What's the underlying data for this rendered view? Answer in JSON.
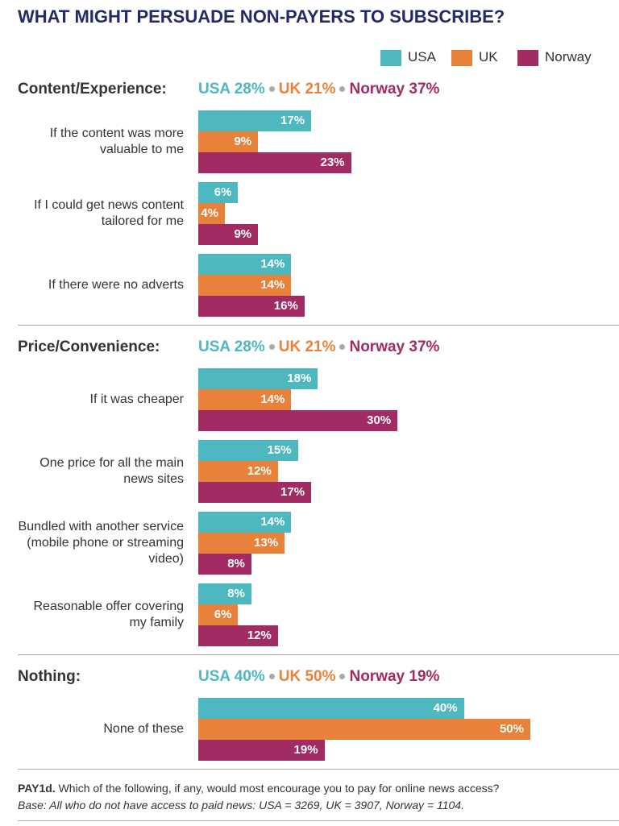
{
  "chart_data": {
    "type": "bar",
    "title": "WHAT MIGHT PERSUADE NON-PAYERS TO SUBSCRIBE?",
    "series": [
      {
        "name": "USA",
        "color": "#4db8c0"
      },
      {
        "name": "UK",
        "color": "#e8823a"
      },
      {
        "name": "Norway",
        "color": "#a22b63"
      }
    ],
    "groups": [
      {
        "title": "Content/Experience:",
        "summary": {
          "values": [
            28,
            21,
            37
          ],
          "value_labels": [
            "USA 28%",
            "UK 21%",
            "Norway 37%"
          ]
        },
        "categories": [
          "If the content was more valuable to me",
          "If I could get news content tailored for me",
          "If there were no adverts"
        ],
        "values": [
          [
            17,
            9,
            23
          ],
          [
            6,
            4,
            9
          ],
          [
            14,
            14,
            16
          ]
        ],
        "value_labels": [
          [
            "17%",
            "9%",
            "23%"
          ],
          [
            "6%",
            "4%",
            "9%"
          ],
          [
            "14%",
            "14%",
            "16%"
          ]
        ]
      },
      {
        "title": "Price/Convenience:",
        "summary": {
          "values": [
            28,
            21,
            37
          ],
          "value_labels": [
            "USA 28%",
            "UK 21%",
            "Norway 37%"
          ]
        },
        "categories": [
          "If it was cheaper",
          "One price for all the main news sites",
          "Bundled with another service (mobile phone or streaming video)",
          "Reasonable offer covering my family"
        ],
        "values": [
          [
            18,
            14,
            30
          ],
          [
            15,
            12,
            17
          ],
          [
            14,
            13,
            8
          ],
          [
            8,
            6,
            12
          ]
        ],
        "value_labels": [
          [
            "18%",
            "14%",
            "30%"
          ],
          [
            "15%",
            "12%",
            "17%"
          ],
          [
            "14%",
            "13%",
            "8%"
          ],
          [
            "8%",
            "6%",
            "12%"
          ]
        ]
      },
      {
        "title": "Nothing:",
        "summary": {
          "values": [
            40,
            50,
            19
          ],
          "value_labels": [
            "USA 40%",
            "UK 50%",
            "Norway 19%"
          ]
        },
        "categories": [
          "None of these"
        ],
        "values": [
          [
            40,
            50,
            19
          ]
        ],
        "value_labels": [
          [
            "40%",
            "50%",
            "19%"
          ]
        ]
      }
    ],
    "note": {
      "label": "PAY1d.",
      "text": "Which of the following, if any, would most encourage you to pay for online news access?"
    },
    "base": "Base: All who do not have access to paid news: USA = 3269, UK = 3907, Norway = 1104."
  }
}
